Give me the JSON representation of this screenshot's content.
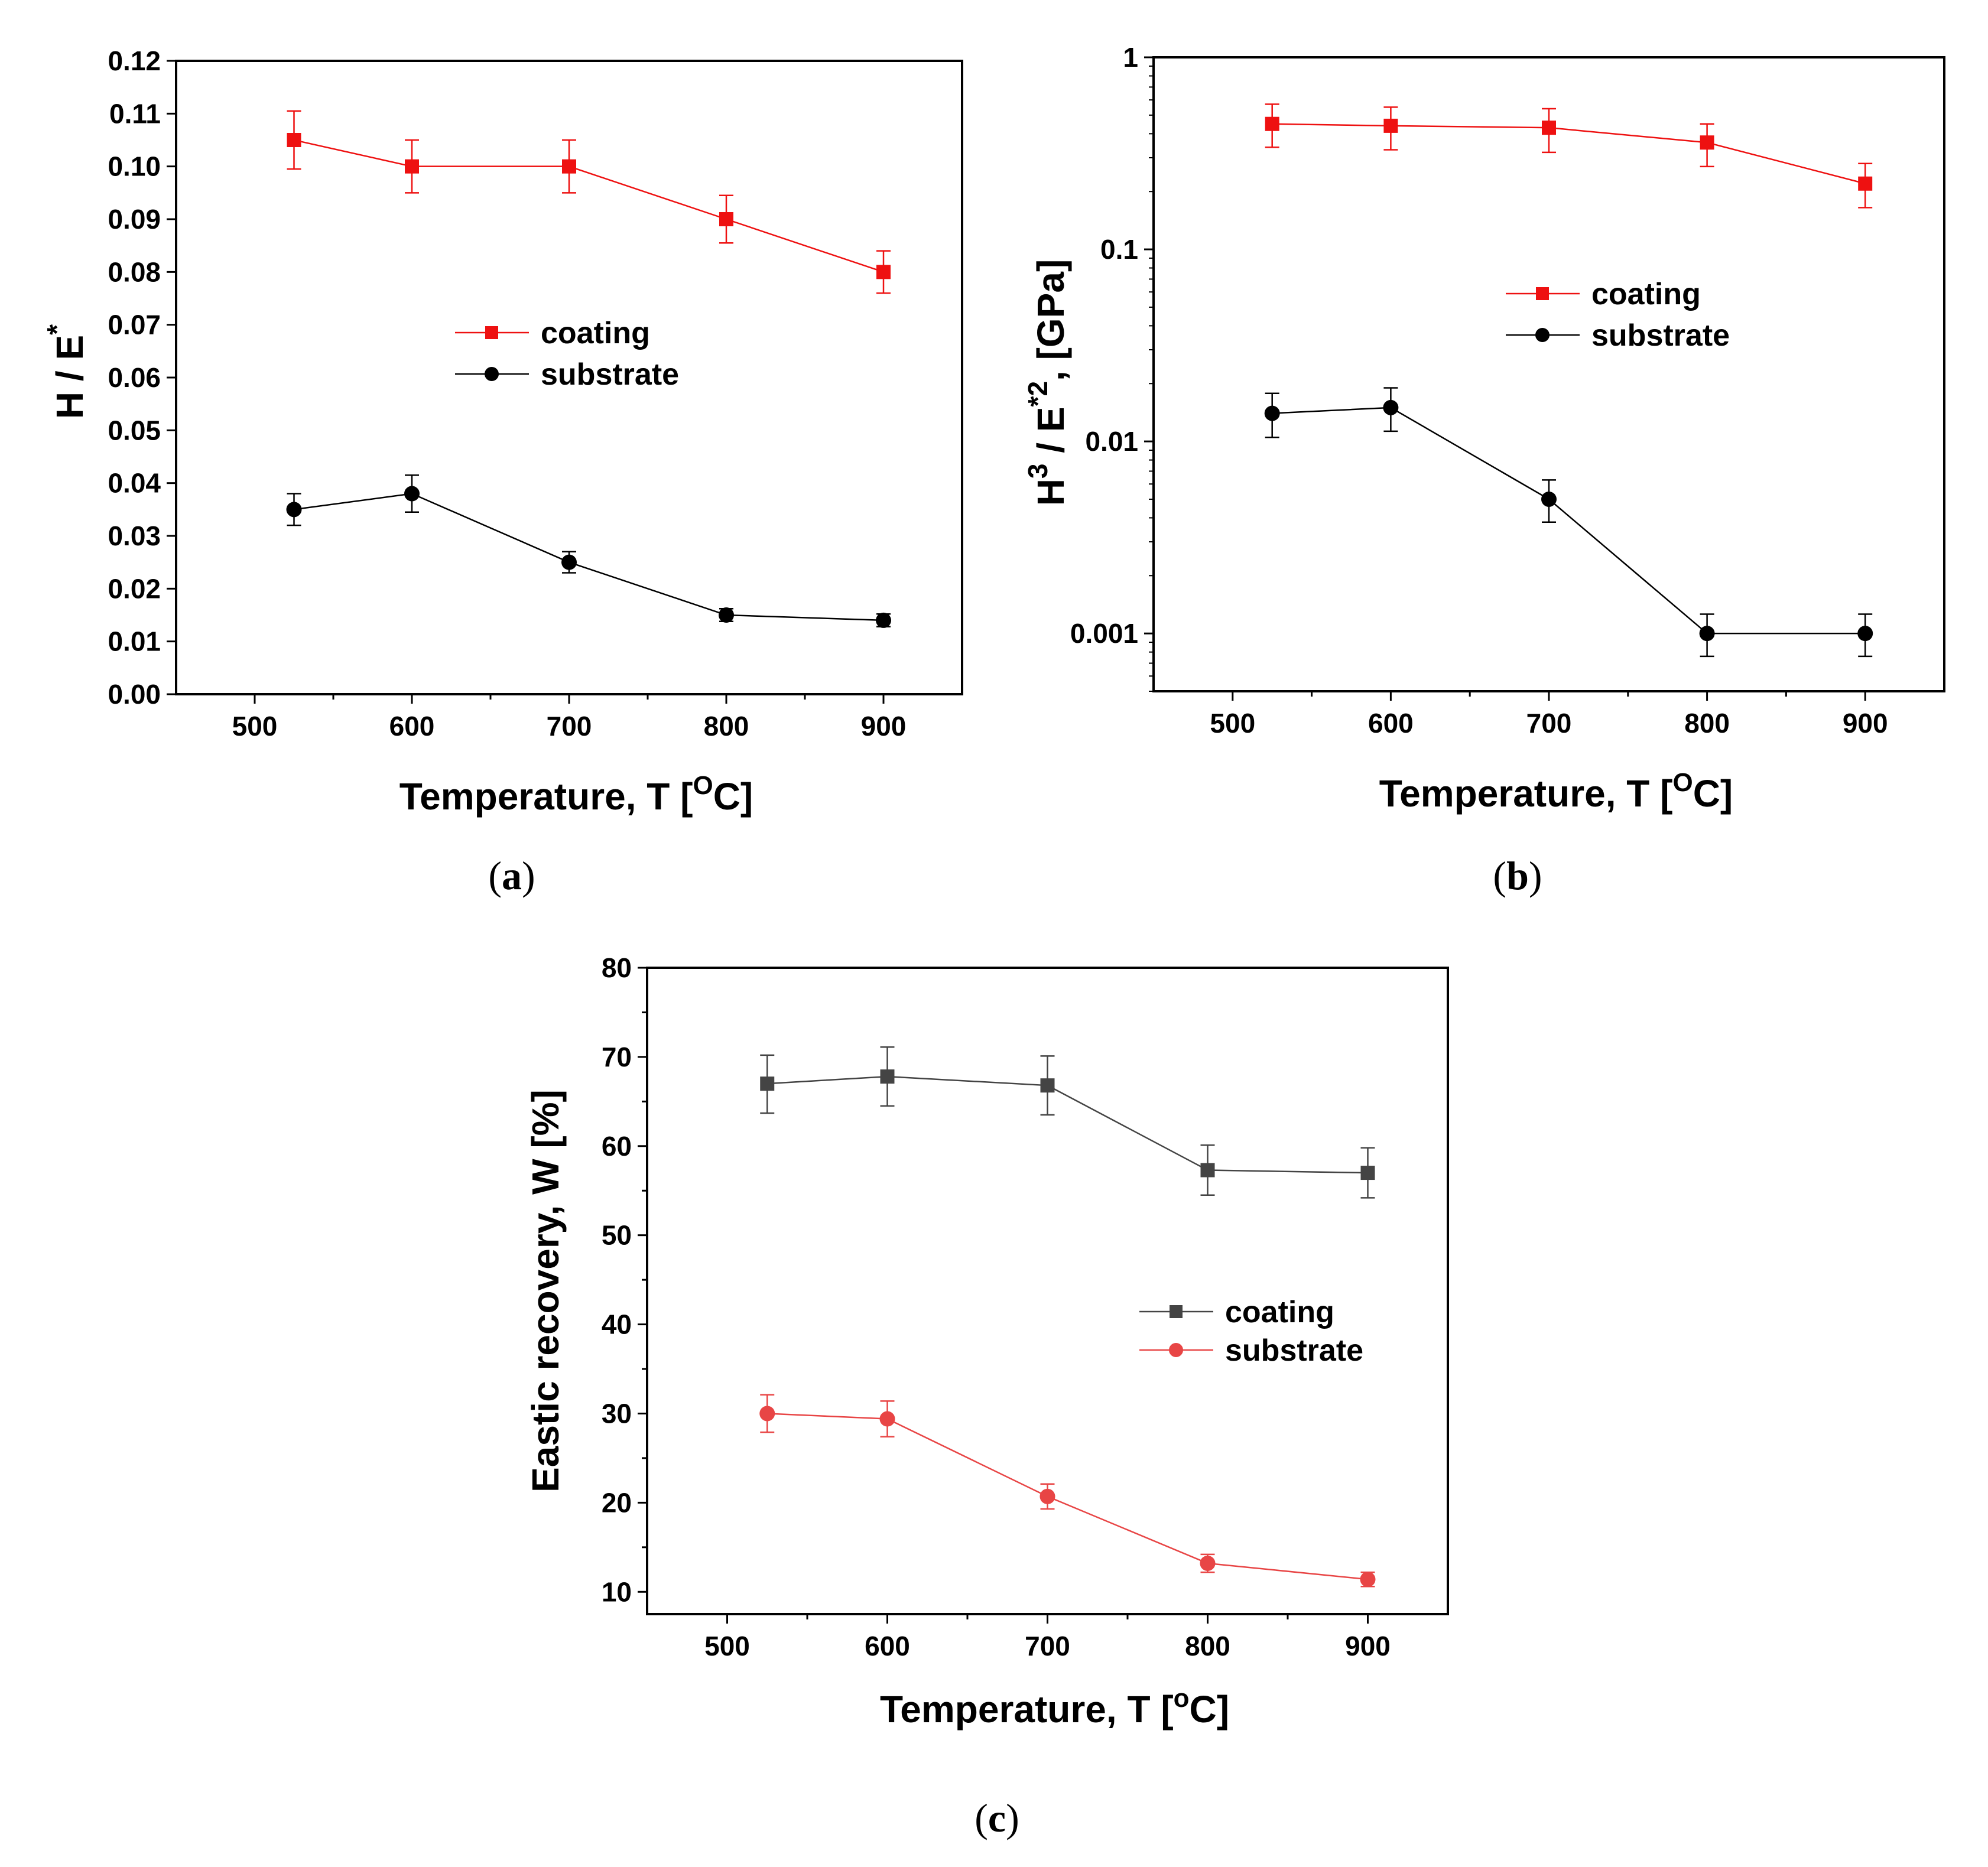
{
  "chart_data": [
    {
      "id": "a",
      "type": "line",
      "caption_letter": "a",
      "xlabel": "Temperature, T [",
      "xlabel_sup": "O",
      "xlabel_end": "C]",
      "ylabel": "H / E",
      "ylabel_sup": "*",
      "xlim": [
        450,
        950
      ],
      "ylim": [
        0,
        0.12
      ],
      "yscale": "linear",
      "xticks": [
        500,
        600,
        700,
        800,
        900
      ],
      "xtick_labels": [
        "500",
        "600",
        "700",
        "800",
        "900"
      ],
      "yticks": [
        0,
        0.01,
        0.02,
        0.03,
        0.04,
        0.05,
        0.06,
        0.07,
        0.08,
        0.09,
        0.1,
        0.11,
        0.12
      ],
      "ytick_labels": [
        "0.00",
        "0.01",
        "0.02",
        "0.03",
        "0.04",
        "0.05",
        "0.06",
        "0.07",
        "0.08",
        "0.09",
        "0.10",
        "0.11",
        "0.12"
      ],
      "legend_position": "center-right",
      "series": [
        {
          "name": "coating",
          "color": "#ee1111",
          "marker": "square",
          "x": [
            525,
            600,
            700,
            800,
            900
          ],
          "y": [
            0.105,
            0.1,
            0.1,
            0.09,
            0.08
          ],
          "err_low": [
            0.0995,
            0.095,
            0.095,
            0.0855,
            0.076
          ],
          "err_high": [
            0.1105,
            0.105,
            0.105,
            0.0945,
            0.084
          ]
        },
        {
          "name": "substrate",
          "color": "#000000",
          "marker": "circle",
          "x": [
            525,
            600,
            700,
            800,
            900
          ],
          "y": [
            0.035,
            0.038,
            0.025,
            0.015,
            0.014
          ],
          "err_low": [
            0.032,
            0.0345,
            0.023,
            0.0138,
            0.0128
          ],
          "err_high": [
            0.038,
            0.0415,
            0.027,
            0.0162,
            0.0152
          ]
        }
      ]
    },
    {
      "id": "b",
      "type": "line",
      "caption_letter": "b",
      "xlabel": "Temperature, T [",
      "xlabel_sup": "O",
      "xlabel_end": "C]",
      "ylabel": "H",
      "ylabel_sup1": "3",
      "ylabel_mid": " / E",
      "ylabel_sup2": "*2",
      "ylabel_end": ", [GPa]",
      "xlim": [
        450,
        950
      ],
      "ylim": [
        0.0005,
        1
      ],
      "yscale": "log",
      "xticks": [
        500,
        600,
        700,
        800,
        900
      ],
      "xtick_labels": [
        "500",
        "600",
        "700",
        "800",
        "900"
      ],
      "yticks": [
        0.001,
        0.01,
        0.1,
        1
      ],
      "ytick_labels": [
        "0.001",
        "0.01",
        "0.1",
        "1"
      ],
      "legend_position": "upper-right",
      "series": [
        {
          "name": "coating",
          "color": "#ee1111",
          "marker": "square",
          "x": [
            525,
            600,
            700,
            800,
            900
          ],
          "y": [
            0.45,
            0.44,
            0.43,
            0.36,
            0.22
          ],
          "err_low": [
            0.34,
            0.33,
            0.32,
            0.27,
            0.165
          ],
          "err_high": [
            0.57,
            0.55,
            0.54,
            0.45,
            0.28
          ]
        },
        {
          "name": "substrate",
          "color": "#000000",
          "marker": "circle",
          "x": [
            525,
            600,
            700,
            800,
            900
          ],
          "y": [
            0.014,
            0.015,
            0.005,
            0.001,
            0.001
          ],
          "err_low": [
            0.0105,
            0.0113,
            0.0038,
            0.00076,
            0.00076
          ],
          "err_high": [
            0.0178,
            0.019,
            0.0063,
            0.00126,
            0.00126
          ]
        }
      ]
    },
    {
      "id": "c",
      "type": "line",
      "caption_letter": "c",
      "xlabel": "Temperature, T [",
      "xlabel_sup": "o",
      "xlabel_end": "C]",
      "ylabel": "Eastic recovery, W [%]",
      "xlim": [
        450,
        950
      ],
      "ylim": [
        7.5,
        80
      ],
      "yscale": "linear",
      "xticks": [
        500,
        600,
        700,
        800,
        900
      ],
      "xtick_labels": [
        "500",
        "600",
        "700",
        "800",
        "900"
      ],
      "yticks": [
        10,
        20,
        30,
        40,
        50,
        60,
        70,
        80
      ],
      "ytick_labels": [
        "10",
        "20",
        "30",
        "40",
        "50",
        "60",
        "70",
        "80"
      ],
      "legend_position": "center-right",
      "series": [
        {
          "name": "coating",
          "color": "#444444",
          "marker": "square",
          "x": [
            525,
            600,
            700,
            800,
            900
          ],
          "y": [
            67.0,
            67.8,
            66.8,
            57.3,
            57.0
          ],
          "err_low": [
            63.7,
            64.5,
            63.5,
            54.5,
            54.2
          ],
          "err_high": [
            70.2,
            71.1,
            70.1,
            60.1,
            59.8
          ]
        },
        {
          "name": "substrate",
          "color": "#e84545",
          "marker": "circle",
          "x": [
            525,
            600,
            700,
            800,
            900
          ],
          "y": [
            30.0,
            29.4,
            20.7,
            13.2,
            11.4
          ],
          "err_low": [
            27.9,
            27.4,
            19.3,
            12.2,
            10.6
          ],
          "err_high": [
            32.1,
            31.4,
            22.1,
            14.2,
            12.2
          ]
        }
      ]
    }
  ]
}
